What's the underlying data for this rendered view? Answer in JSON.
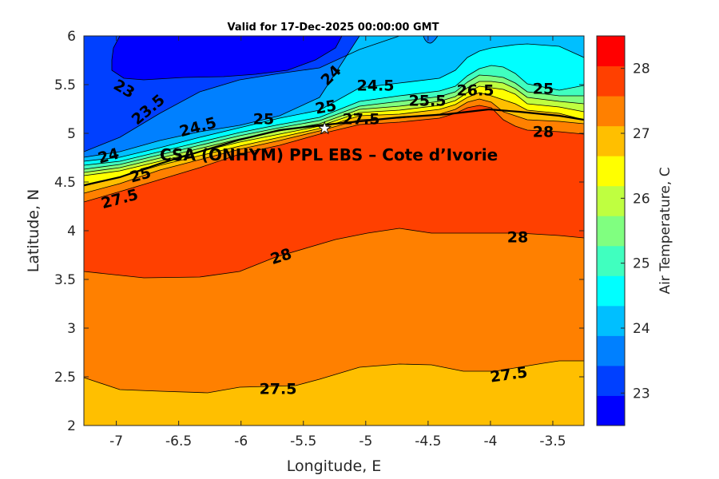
{
  "chart_data": {
    "type": "heatmap",
    "subtype": "filled-contour",
    "title": "Valid for 17-Dec-2025 00:00:00 GMT",
    "xlabel": "Longitude, E",
    "ylabel": "Latitude, N",
    "xlim": [
      -7.26,
      -3.25
    ],
    "ylim": [
      2,
      6
    ],
    "xticks": [
      "-7",
      "-6.5",
      "-6",
      "-5.5",
      "-5",
      "-4.5",
      "-4",
      "-3.5"
    ],
    "yticks": [
      "2",
      "2.5",
      "3",
      "3.5",
      "4",
      "4.5",
      "5",
      "5.5",
      "6"
    ],
    "colorbar": {
      "label": "Air Temperature, C",
      "range": [
        22.5,
        28.5
      ],
      "ticks": [
        "23",
        "24",
        "25",
        "26",
        "27",
        "28"
      ],
      "colors": [
        "#0000FF",
        "#0040FF",
        "#0080FF",
        "#00BFFF",
        "#00FFFF",
        "#40FFBF",
        "#80FF80",
        "#BFFF40",
        "#FFFF00",
        "#FFBF00",
        "#FF8000",
        "#FF4000",
        "#FF0000"
      ]
    },
    "levels": [
      23,
      23.5,
      24,
      24.5,
      25,
      25.5,
      26,
      26.5,
      27,
      27.5,
      28
    ],
    "contour_labels": [
      "23",
      "23.5",
      "24",
      "24",
      "24.5",
      "25",
      "25",
      "25.5",
      "26.5",
      "27.5",
      "24.5",
      "25",
      "27.5",
      "28",
      "28",
      "28",
      "27.5",
      "27.5",
      "25"
    ],
    "station": {
      "name": "CSA (ONHYM) PPL EBS  – Cote d’Ivorie",
      "lon": -5.33,
      "lat": 5.05,
      "marker": "white-star"
    }
  }
}
